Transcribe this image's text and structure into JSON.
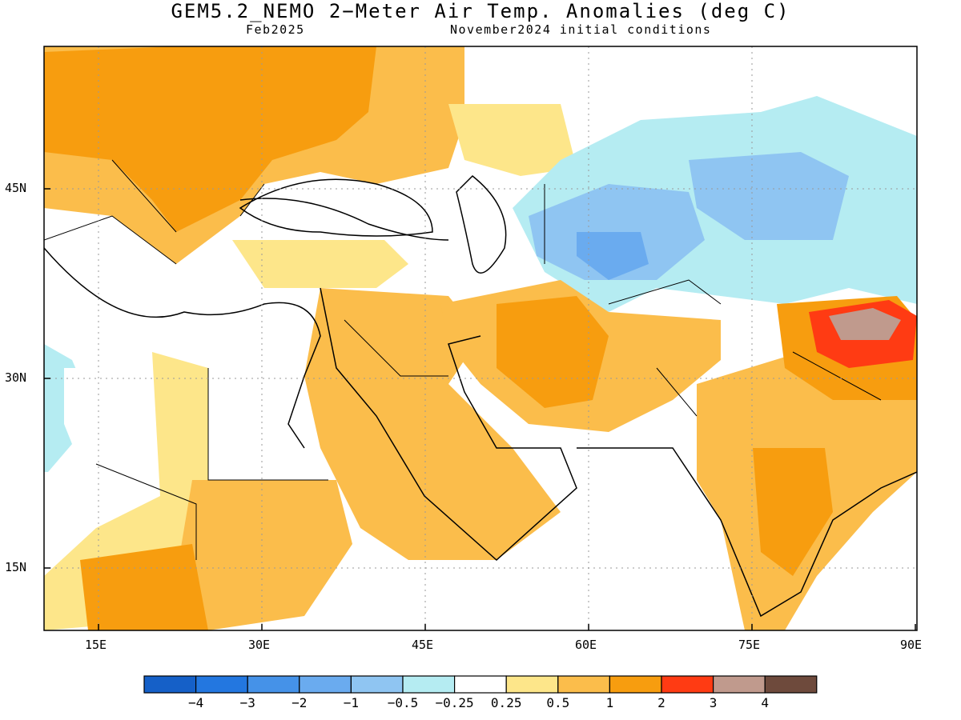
{
  "title": "GEM5.2_NEMO 2−Meter Air Temp. Anomalies (deg C)",
  "subtitle_left": "Feb2025",
  "subtitle_right": "November2024 initial conditions",
  "map": {
    "lat_labels": [
      "45N",
      "30N",
      "15N"
    ],
    "lon_labels": [
      "15E",
      "30E",
      "45E",
      "60E",
      "75E",
      "90E"
    ],
    "extent": {
      "lon": [
        10,
        90
      ],
      "lat": [
        10,
        56
      ]
    },
    "grid": "dotted at 15° intervals"
  },
  "colorbar": {
    "colors": [
      "#1560c8",
      "#2377e0",
      "#4592e8",
      "#6aabef",
      "#8fc5f2",
      "#b5ecf2",
      "#ffffff",
      "#fde68a",
      "#fbbd4b",
      "#f79d0f",
      "#ff3b13",
      "#c09a8d",
      "#6e4a3c"
    ],
    "labels": [
      "−4",
      "−3",
      "−2",
      "−1",
      "−0.5",
      "−0.25",
      "0.25",
      "0.5",
      "1",
      "2",
      "3",
      "4"
    ]
  },
  "colors": {
    "orange": "#f79d0f",
    "light_orange": "#fbbd4b",
    "yellow": "#fde68a",
    "light_blue": "#b5ecf2",
    "blue_light2": "#8fc5f2",
    "blue": "#6aabef",
    "red": "#ff3b13",
    "taupe": "#c09a8d"
  }
}
